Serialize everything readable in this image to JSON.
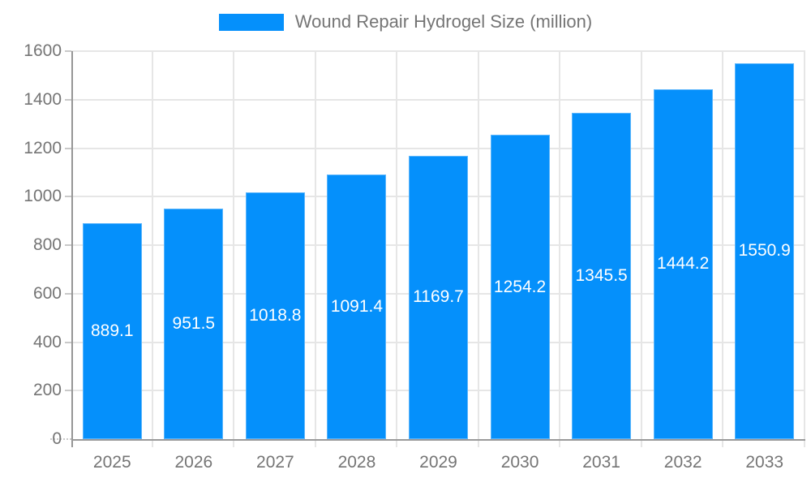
{
  "chart_data": {
    "type": "bar",
    "title": "Wound Repair Hydrogel Size (million)",
    "categories": [
      "2025",
      "2026",
      "2027",
      "2028",
      "2029",
      "2030",
      "2031",
      "2032",
      "2033"
    ],
    "values": [
      889.1,
      951.5,
      1018.8,
      1091.4,
      1169.7,
      1254.2,
      1345.5,
      1444.2,
      1550.9
    ],
    "ylim": [
      0,
      1600
    ],
    "yticks": [
      0,
      200,
      400,
      600,
      800,
      1000,
      1200,
      1400,
      1600
    ],
    "grid": true,
    "legend_position": "top",
    "bar_color": "#0590fb",
    "value_label_color": "#ffffff",
    "axis_text_color": "#757575",
    "gridline_color": "#e6e6e6",
    "axis_line_color": "#969696"
  }
}
